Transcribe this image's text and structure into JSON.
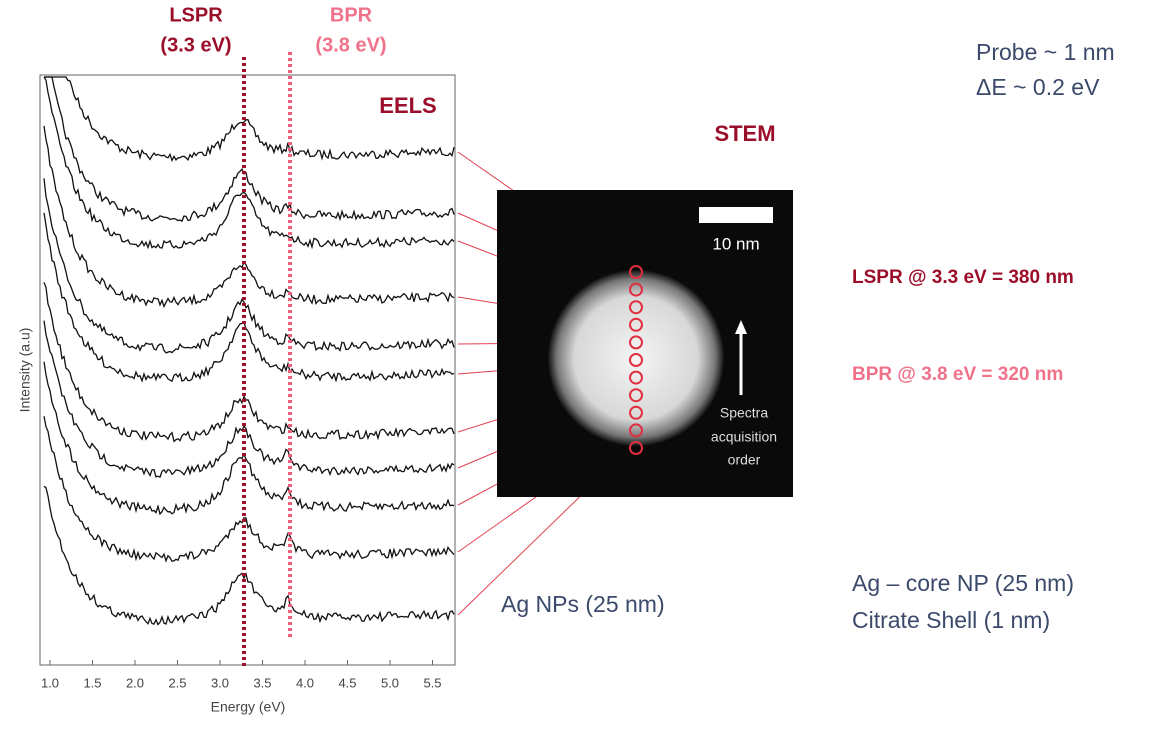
{
  "lspr_marker": {
    "name": "LSPR",
    "energy": "(3.3 eV)"
  },
  "bpr_marker": {
    "name": "BPR",
    "energy": "(3.8 eV)"
  },
  "eels_label": "EELS",
  "stem_label": "STEM",
  "probe": {
    "size": "Probe ~ 1 nm",
    "resolution": "ΔE ~ 0.2 eV"
  },
  "resonances": {
    "lspr": "LSPR @ 3.3 eV = 380 nm",
    "bpr": "BPR @ 3.8 eV = 320 nm"
  },
  "sample_label": "Ag NPs (25 nm)",
  "particle": {
    "core": "Ag – core NP (25 nm)",
    "shell": "Citrate Shell (1 nm)"
  },
  "image": {
    "scale_bar": "10 nm",
    "arrow_text": [
      "Spectra",
      "acquisition",
      "order"
    ]
  },
  "plot": {
    "x_label": "Energy (eV)",
    "y_label": "Intensity (a.u)",
    "x_ticks": [
      "1.0",
      "1.5",
      "2.0",
      "2.5",
      "3.0",
      "3.5",
      "4.0",
      "4.5",
      "5.0",
      "5.5"
    ]
  }
}
